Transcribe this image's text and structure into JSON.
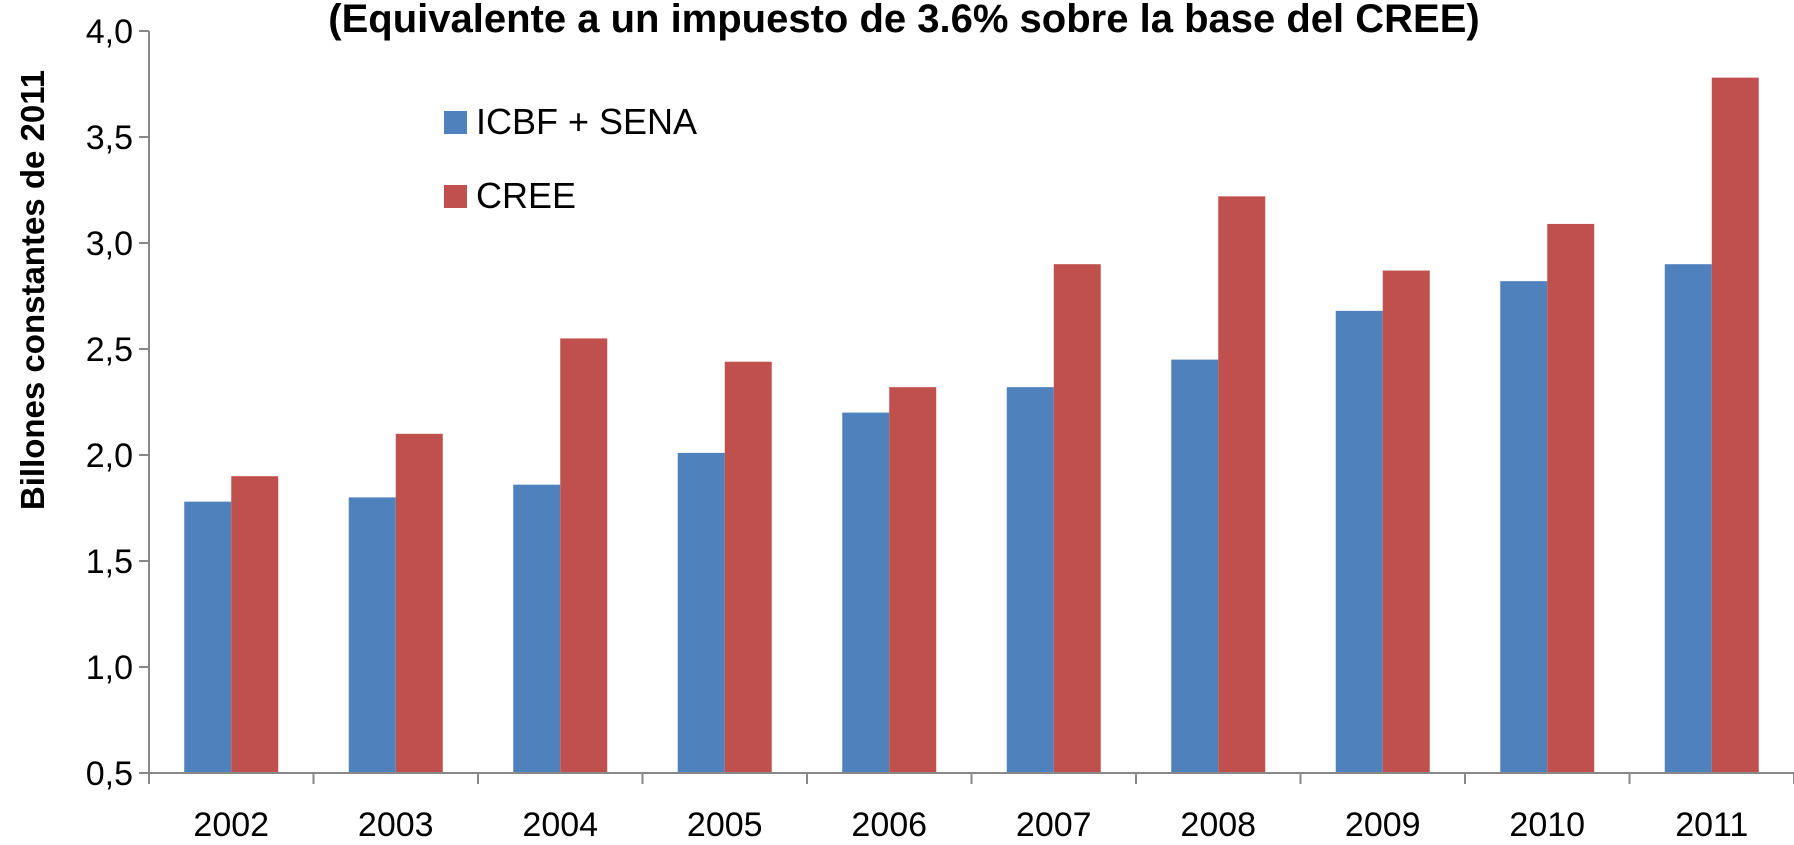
{
  "chart_data": {
    "type": "bar",
    "title": "(Equivalente a un impuesto de 3.6% sobre la base del CREE)",
    "y_label": "Billones constantes de 2011",
    "categories": [
      "2002",
      "2003",
      "2004",
      "2005",
      "2006",
      "2007",
      "2008",
      "2009",
      "2010",
      "2011"
    ],
    "series": [
      {
        "name": "ICBF + SENA",
        "color": "#4f81bd",
        "values": [
          1.78,
          1.8,
          1.86,
          2.01,
          2.2,
          2.32,
          2.45,
          2.68,
          2.82,
          2.9
        ]
      },
      {
        "name": "CREE",
        "color": "#c0504d",
        "values": [
          1.9,
          2.1,
          2.55,
          2.44,
          2.32,
          2.9,
          3.22,
          2.87,
          3.09,
          3.78
        ]
      }
    ],
    "ylim": [
      0.5,
      4.0
    ],
    "yticks": [
      {
        "value": 0.5,
        "label": "0,5"
      },
      {
        "value": 1.0,
        "label": "1,0"
      },
      {
        "value": 1.5,
        "label": "1,5"
      },
      {
        "value": 2.0,
        "label": "2,0"
      },
      {
        "value": 2.5,
        "label": "2,5"
      },
      {
        "value": 3.0,
        "label": "3,0"
      },
      {
        "value": 3.5,
        "label": "3,5"
      },
      {
        "value": 4.0,
        "label": "4,0"
      }
    ],
    "grid": false,
    "legend": "top-left"
  }
}
